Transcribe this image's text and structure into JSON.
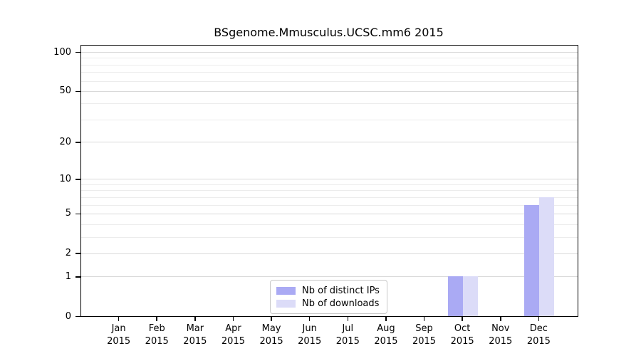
{
  "chart_data": {
    "type": "bar",
    "title": "BSgenome.Mmusculus.UCSC.mm6 2015",
    "categories": [
      "Jan",
      "Feb",
      "Mar",
      "Apr",
      "May",
      "Jun",
      "Jul",
      "Aug",
      "Sep",
      "Oct",
      "Nov",
      "Dec"
    ],
    "x_tick_second_line": "2015",
    "series": [
      {
        "name": "Nb of distinct IPs",
        "color": "#aaaaf4",
        "values": [
          0,
          0,
          0,
          0,
          0,
          0,
          0,
          0,
          0,
          1,
          0,
          6
        ]
      },
      {
        "name": "Nb of downloads",
        "color": "#dcdcf8",
        "values": [
          0,
          0,
          0,
          0,
          0,
          0,
          0,
          0,
          0,
          1,
          0,
          7
        ]
      }
    ],
    "yscale": "log10(1+x)",
    "ylim": [
      0,
      112
    ],
    "yticks": [
      0,
      1,
      2,
      5,
      10,
      20,
      50,
      100
    ],
    "minor_gridlines": [
      3,
      4,
      6,
      7,
      8,
      9,
      30,
      40,
      60,
      70,
      80,
      90
    ],
    "grid": "horizontal",
    "legend_position": "bottom-center",
    "colors": {
      "major_grid": "#d9d9d9",
      "minor_grid": "#ececec",
      "spine": "#000000",
      "text": "#000000"
    }
  }
}
